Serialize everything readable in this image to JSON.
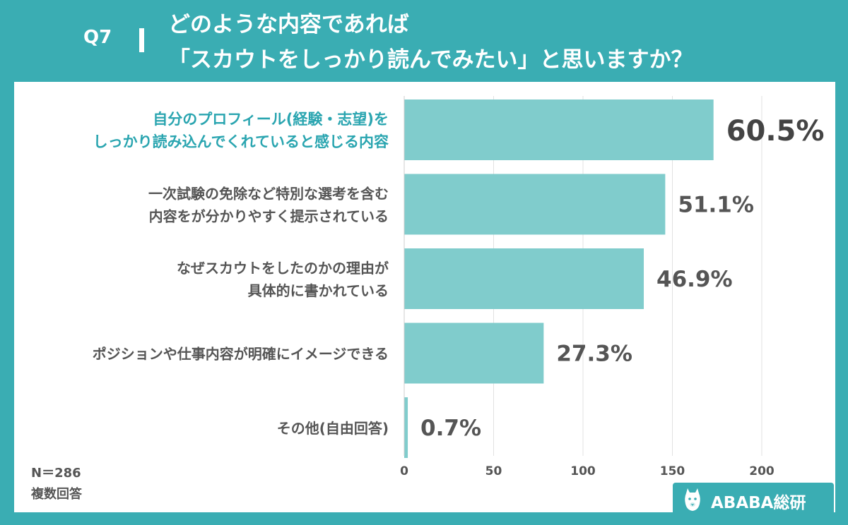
{
  "header": {
    "question": "Q7",
    "title_line1": "どのような内容であれば",
    "title_line2": "「スカウトをしっかり読んでみたい」と思いますか？"
  },
  "notes": {
    "sample": "N＝286",
    "type": "複数回答"
  },
  "logo": {
    "text": "ABABA総研"
  },
  "colors": {
    "background": "#3aadb3",
    "bar": "#80cccc",
    "highlight_text": "#2aa5b0",
    "label_text": "#555555",
    "value_text": "#555555",
    "highlight_value": "#444444"
  },
  "chart_data": {
    "type": "bar",
    "orientation": "horizontal",
    "categories": [
      [
        "自分のプロフィール(経験・志望)を",
        "しっかり読み込んでくれていると感じる内容"
      ],
      [
        "一次試験の免除など特別な選考を含む",
        "内容をが分かりやすく提示されている"
      ],
      [
        "なぜスカウトをしたのかの理由が",
        "具体的に書かれている"
      ],
      [
        "ポジションや仕事内容が明確にイメージできる"
      ],
      [
        "その他(自由回答)"
      ]
    ],
    "values": [
      173,
      146,
      134,
      78,
      2
    ],
    "value_labels": [
      "60.5%",
      "51.1%",
      "46.9%",
      "27.3%",
      "0.7%"
    ],
    "highlight_index": 0,
    "xlim": [
      0,
      230
    ],
    "xticks": [
      0,
      50,
      100,
      150,
      200
    ],
    "grid": true
  }
}
